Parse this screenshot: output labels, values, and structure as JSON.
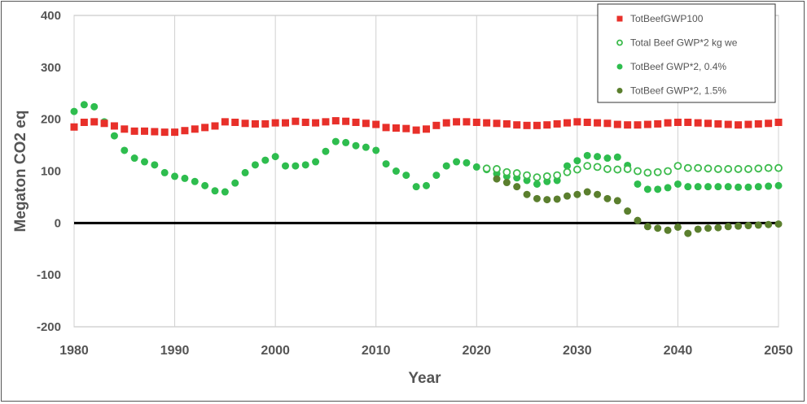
{
  "chart_data": {
    "type": "scatter",
    "title": "",
    "xlabel": "Year",
    "ylabel": "Megaton CO2 eq",
    "xlim": [
      1980,
      2050
    ],
    "ylim": [
      -200,
      400
    ],
    "xticks": [
      1980,
      1990,
      2000,
      2010,
      2020,
      2030,
      2040,
      2050
    ],
    "yticks": [
      -200,
      -100,
      0,
      100,
      200,
      300,
      400
    ],
    "grid": "vertical",
    "zero_line": 0,
    "legend_position": "top-right",
    "series": [
      {
        "name": "TotBeefGWP100",
        "marker": "square",
        "color": "#e8302a",
        "x": [
          1980,
          1981,
          1982,
          1983,
          1984,
          1985,
          1986,
          1987,
          1988,
          1989,
          1990,
          1991,
          1992,
          1993,
          1994,
          1995,
          1996,
          1997,
          1998,
          1999,
          2000,
          2001,
          2002,
          2003,
          2004,
          2005,
          2006,
          2007,
          2008,
          2009,
          2010,
          2011,
          2012,
          2013,
          2014,
          2015,
          2016,
          2017,
          2018,
          2019,
          2020,
          2021,
          2022,
          2023,
          2024,
          2025,
          2026,
          2027,
          2028,
          2029,
          2030,
          2031,
          2032,
          2033,
          2034,
          2035,
          2036,
          2037,
          2038,
          2039,
          2040,
          2041,
          2042,
          2043,
          2044,
          2045,
          2046,
          2047,
          2048,
          2049,
          2050
        ],
        "y": [
          185,
          194,
          195,
          192,
          187,
          181,
          177,
          177,
          176,
          175,
          175,
          178,
          181,
          184,
          187,
          195,
          194,
          192,
          191,
          191,
          193,
          193,
          196,
          194,
          193,
          195,
          197,
          196,
          194,
          192,
          190,
          184,
          183,
          182,
          179,
          181,
          188,
          193,
          195,
          195,
          194,
          193,
          192,
          191,
          189,
          188,
          188,
          189,
          191,
          193,
          195,
          194,
          193,
          192,
          190,
          189,
          189,
          190,
          191,
          193,
          194,
          194,
          193,
          192,
          191,
          190,
          189,
          190,
          191,
          192,
          194
        ]
      },
      {
        "name": "Total Beef GWP*2  kg we",
        "marker": "circle-open",
        "color": "#3dbb4d",
        "x": [
          2021,
          2022,
          2023,
          2024,
          2025,
          2026,
          2027,
          2028,
          2029,
          2030,
          2031,
          2032,
          2033,
          2034,
          2035,
          2036,
          2037,
          2038,
          2039,
          2040,
          2041,
          2042,
          2043,
          2044,
          2045,
          2046,
          2047,
          2048,
          2049,
          2050
        ],
        "y": [
          105,
          104,
          98,
          96,
          92,
          88,
          90,
          92,
          98,
          103,
          110,
          108,
          104,
          103,
          104,
          100,
          97,
          98,
          100,
          110,
          106,
          106,
          105,
          104,
          104,
          104,
          104,
          105,
          106,
          106
        ]
      },
      {
        "name": "TotBeef GWP*2, 0.4%",
        "marker": "circle",
        "color": "#2ebd4e",
        "x": [
          1980,
          1981,
          1982,
          1983,
          1984,
          1985,
          1986,
          1987,
          1988,
          1989,
          1990,
          1991,
          1992,
          1993,
          1994,
          1995,
          1996,
          1997,
          1998,
          1999,
          2000,
          2001,
          2002,
          2003,
          2004,
          2005,
          2006,
          2007,
          2008,
          2009,
          2010,
          2011,
          2012,
          2013,
          2014,
          2015,
          2016,
          2017,
          2018,
          2019,
          2020,
          2021,
          2022,
          2023,
          2024,
          2025,
          2026,
          2027,
          2028,
          2029,
          2030,
          2031,
          2032,
          2033,
          2034,
          2035,
          2036,
          2037,
          2038,
          2039,
          2040,
          2041,
          2042,
          2043,
          2044,
          2045,
          2046,
          2047,
          2048,
          2049,
          2050
        ],
        "y": [
          215,
          228,
          224,
          195,
          168,
          140,
          125,
          118,
          112,
          97,
          90,
          86,
          80,
          72,
          62,
          60,
          77,
          97,
          112,
          121,
          128,
          110,
          110,
          112,
          118,
          138,
          157,
          155,
          149,
          146,
          140,
          114,
          100,
          92,
          70,
          72,
          92,
          110,
          118,
          116,
          108,
          103,
          95,
          90,
          87,
          82,
          75,
          80,
          82,
          110,
          120,
          130,
          128,
          125,
          127,
          111,
          75,
          65,
          65,
          68,
          75,
          70,
          70,
          70,
          70,
          70,
          69,
          69,
          70,
          71,
          72
        ]
      },
      {
        "name": "TotBeef GWP*2, 1.5%",
        "marker": "circle",
        "color": "#5b7f2e",
        "x": [
          2022,
          2023,
          2024,
          2025,
          2026,
          2027,
          2028,
          2029,
          2030,
          2031,
          2032,
          2033,
          2034,
          2035,
          2036,
          2037,
          2038,
          2039,
          2040,
          2041,
          2042,
          2043,
          2044,
          2045,
          2046,
          2047,
          2048,
          2049,
          2050
        ],
        "y": [
          85,
          78,
          70,
          55,
          47,
          45,
          46,
          52,
          55,
          60,
          55,
          47,
          43,
          23,
          5,
          -7,
          -10,
          -14,
          -8,
          -20,
          -12,
          -10,
          -9,
          -7,
          -6,
          -5,
          -4,
          -3,
          -2
        ]
      }
    ]
  }
}
